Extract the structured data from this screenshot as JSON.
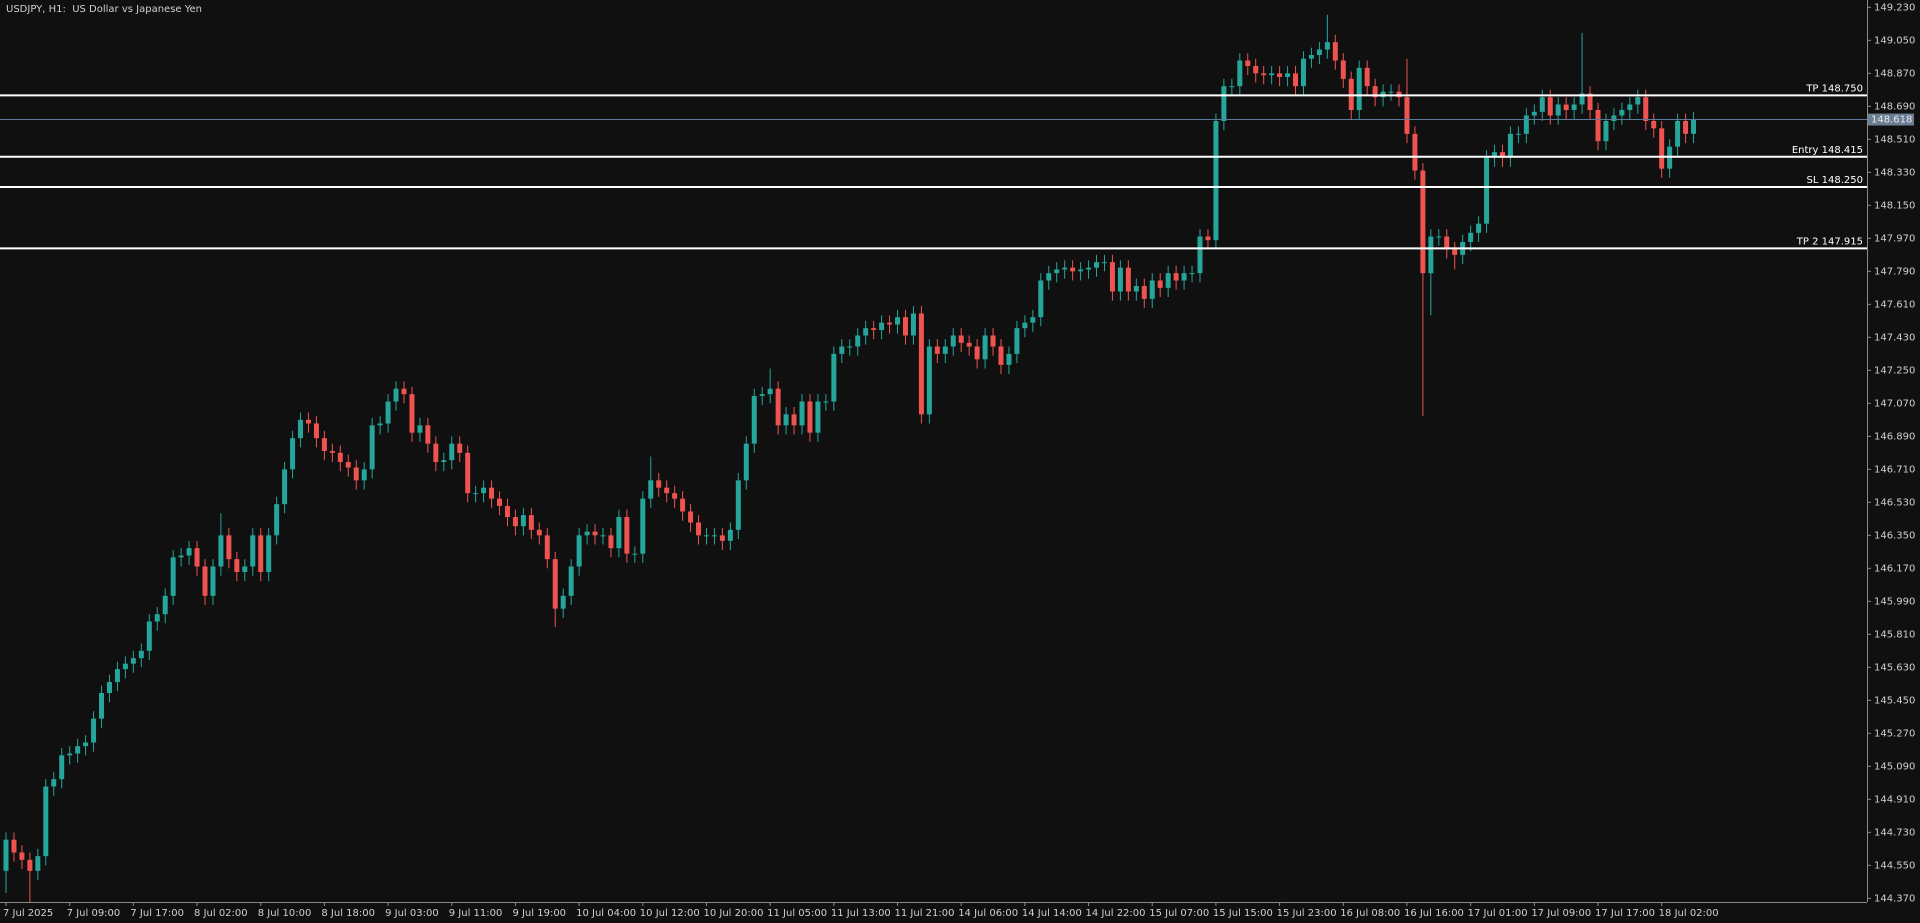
{
  "chart_data": {
    "type": "candlestick",
    "title": "USDJPY, H1:  US Dollar vs Japanese Yen",
    "up_color": "#26a69a",
    "down_color": "#ef5350",
    "ylim": [
      144.35,
      149.27
    ],
    "yticks": [
      {
        "value": 149.23,
        "label": "149.230"
      },
      {
        "value": 149.05,
        "label": "149.050"
      },
      {
        "value": 148.87,
        "label": "148.870"
      },
      {
        "value": 148.69,
        "label": "148.690"
      },
      {
        "value": 148.51,
        "label": "148.510"
      },
      {
        "value": 148.33,
        "label": "148.330"
      },
      {
        "value": 148.15,
        "label": "148.150"
      },
      {
        "value": 147.97,
        "label": "147.970"
      },
      {
        "value": 147.79,
        "label": "147.790"
      },
      {
        "value": 147.61,
        "label": "147.610"
      },
      {
        "value": 147.43,
        "label": "147.430"
      },
      {
        "value": 147.25,
        "label": "147.250"
      },
      {
        "value": 147.07,
        "label": "147.070"
      },
      {
        "value": 146.89,
        "label": "146.890"
      },
      {
        "value": 146.71,
        "label": "146.710"
      },
      {
        "value": 146.53,
        "label": "146.530"
      },
      {
        "value": 146.35,
        "label": "146.350"
      },
      {
        "value": 146.17,
        "label": "146.170"
      },
      {
        "value": 145.99,
        "label": "145.990"
      },
      {
        "value": 145.81,
        "label": "145.810"
      },
      {
        "value": 145.63,
        "label": "145.630"
      },
      {
        "value": 145.45,
        "label": "145.450"
      },
      {
        "value": 145.27,
        "label": "145.270"
      },
      {
        "value": 145.09,
        "label": "145.090"
      },
      {
        "value": 144.91,
        "label": "144.910"
      },
      {
        "value": 144.73,
        "label": "144.730"
      },
      {
        "value": 144.55,
        "label": "144.550"
      },
      {
        "value": 144.37,
        "label": "144.370"
      }
    ],
    "levels": [
      {
        "label": "TP 148.750",
        "value": 148.75
      },
      {
        "label": "Entry 148.415",
        "value": 148.415
      },
      {
        "label": "SL 148.250",
        "value": 148.25
      },
      {
        "label": "TP 2 147.915",
        "value": 147.915
      }
    ],
    "price_line": {
      "value": 148.618,
      "label": "148.618"
    },
    "categories": [
      "7 Jul 2025",
      null,
      null,
      null,
      null,
      null,
      null,
      null,
      "7 Jul 09:00",
      null,
      null,
      null,
      null,
      null,
      null,
      null,
      "7 Jul 17:00",
      null,
      null,
      null,
      null,
      null,
      null,
      null,
      "8 Jul 02:00",
      null,
      null,
      null,
      null,
      null,
      null,
      null,
      "8 Jul 10:00",
      null,
      null,
      null,
      null,
      null,
      null,
      null,
      "8 Jul 18:00",
      null,
      null,
      null,
      null,
      null,
      null,
      null,
      "9 Jul 03:00",
      null,
      null,
      null,
      null,
      null,
      null,
      null,
      "9 Jul 11:00",
      null,
      null,
      null,
      null,
      null,
      null,
      null,
      "9 Jul 19:00",
      null,
      null,
      null,
      null,
      null,
      null,
      null,
      "10 Jul 04:00",
      null,
      null,
      null,
      null,
      null,
      null,
      null,
      "10 Jul 12:00",
      null,
      null,
      null,
      null,
      null,
      null,
      null,
      "10 Jul 20:00",
      null,
      null,
      null,
      null,
      null,
      null,
      null,
      "11 Jul 05:00",
      null,
      null,
      null,
      null,
      null,
      null,
      null,
      "11 Jul 13:00",
      null,
      null,
      null,
      null,
      null,
      null,
      null,
      "11 Jul 21:00",
      null,
      null,
      null,
      null,
      null,
      null,
      null,
      "14 Jul 06:00",
      null,
      null,
      null,
      null,
      null,
      null,
      null,
      "14 Jul 14:00",
      null,
      null,
      null,
      null,
      null,
      null,
      null,
      "14 Jul 22:00",
      null,
      null,
      null,
      null,
      null,
      null,
      null,
      "15 Jul 07:00",
      null,
      null,
      null,
      null,
      null,
      null,
      null,
      "15 Jul 15:00",
      null,
      null,
      null,
      null,
      null,
      null,
      null,
      "15 Jul 23:00",
      null,
      null,
      null,
      null,
      null,
      null,
      null,
      "16 Jul 08:00",
      null,
      null,
      null,
      null,
      null,
      null,
      null,
      "16 Jul 16:00",
      null,
      null,
      null,
      null,
      null,
      null,
      null,
      "17 Jul 01:00",
      null,
      null,
      null,
      null,
      null,
      null,
      null,
      "17 Jul 09:00",
      null,
      null,
      null,
      null,
      null,
      null,
      null,
      "17 Jul 17:00",
      null,
      null,
      null,
      null,
      null,
      null,
      null,
      "18 Jul 02:00",
      null,
      null,
      null,
      null
    ],
    "open": [
      144.52,
      144.69,
      144.62,
      144.58,
      144.52,
      144.6,
      144.98,
      145.02,
      145.15,
      145.16,
      145.2,
      145.22,
      145.35,
      145.49,
      145.55,
      145.62,
      145.65,
      145.68,
      145.72,
      145.88,
      145.92,
      146.02,
      146.23,
      146.24,
      146.28,
      146.18,
      146.02,
      146.18,
      146.35,
      146.22,
      146.15,
      146.18,
      146.35,
      146.15,
      146.35,
      146.52,
      146.71,
      146.88,
      146.98,
      146.96,
      146.88,
      146.81,
      146.8,
      146.75,
      146.72,
      146.65,
      146.71,
      146.95,
      146.96,
      147.08,
      147.15,
      147.12,
      146.91,
      146.95,
      146.85,
      146.75,
      146.76,
      146.85,
      146.8,
      146.58,
      146.58,
      146.61,
      146.55,
      146.51,
      146.45,
      146.4,
      146.46,
      146.38,
      146.35,
      146.22,
      145.95,
      146.02,
      146.18,
      146.35,
      146.37,
      146.35,
      146.35,
      146.28,
      146.45,
      146.25,
      146.25,
      146.55,
      146.65,
      146.61,
      146.58,
      146.55,
      146.48,
      146.42,
      146.35,
      146.35,
      146.35,
      146.32,
      146.38,
      146.65,
      146.85,
      147.11,
      147.12,
      147.15,
      146.95,
      147.01,
      146.95,
      147.08,
      146.91,
      147.08,
      147.08,
      147.34,
      147.38,
      147.38,
      147.44,
      147.48,
      147.47,
      147.51,
      147.5,
      147.54,
      147.44,
      147.56,
      147.01,
      147.38,
      147.34,
      147.38,
      147.44,
      147.4,
      147.38,
      147.31,
      147.44,
      147.38,
      147.28,
      147.34,
      147.48,
      147.51,
      147.54,
      147.74,
      147.78,
      147.8,
      147.81,
      147.79,
      147.8,
      147.81,
      147.84,
      147.84,
      147.68,
      147.81,
      147.68,
      147.71,
      147.64,
      147.74,
      147.7,
      147.78,
      147.74,
      147.78,
      147.78,
      147.98,
      147.96,
      148.61,
      148.8,
      148.8,
      148.94,
      148.91,
      148.87,
      148.86,
      148.87,
      148.85,
      148.87,
      148.8,
      148.95,
      148.97,
      149.0,
      149.04,
      148.94,
      148.84,
      148.67,
      148.9,
      148.8,
      148.74,
      148.77,
      148.77,
      148.74,
      148.54,
      148.34,
      147.78,
      147.98,
      147.98,
      147.91,
      147.88,
      147.95,
      148.0,
      148.05,
      148.41,
      148.44,
      148.41,
      148.54,
      148.54,
      148.64,
      148.66,
      148.74,
      148.64,
      148.7,
      148.67,
      148.7,
      148.76,
      148.67,
      148.5,
      148.61,
      148.64,
      148.67,
      148.7,
      148.74,
      148.61,
      148.57,
      148.35,
      148.47,
      148.61,
      148.54
    ],
    "high": [
      144.73,
      144.73,
      144.66,
      144.62,
      144.64,
      145.02,
      145.06,
      145.19,
      145.2,
      145.24,
      145.26,
      145.39,
      145.53,
      145.59,
      145.66,
      145.69,
      145.72,
      145.76,
      145.92,
      145.96,
      146.06,
      146.27,
      146.28,
      146.32,
      146.32,
      146.22,
      146.22,
      146.47,
      146.39,
      146.26,
      146.22,
      146.39,
      146.39,
      146.39,
      146.56,
      146.75,
      146.92,
      147.02,
      147.02,
      147.0,
      146.92,
      146.85,
      146.84,
      146.79,
      146.76,
      146.75,
      146.99,
      147.0,
      147.12,
      147.19,
      147.19,
      147.16,
      146.99,
      146.99,
      146.89,
      146.8,
      146.89,
      146.89,
      146.84,
      146.62,
      146.65,
      146.65,
      146.59,
      146.55,
      146.49,
      146.5,
      146.5,
      146.42,
      146.39,
      146.26,
      146.06,
      146.22,
      146.39,
      146.41,
      146.41,
      146.39,
      146.39,
      146.49,
      146.49,
      146.29,
      146.59,
      146.78,
      146.69,
      146.65,
      146.62,
      146.59,
      146.52,
      146.46,
      146.39,
      146.39,
      146.39,
      146.42,
      146.69,
      146.89,
      147.15,
      147.16,
      147.26,
      147.19,
      147.05,
      147.05,
      147.12,
      147.12,
      147.12,
      147.12,
      147.38,
      147.42,
      147.42,
      147.48,
      147.52,
      147.52,
      147.55,
      147.55,
      147.58,
      147.58,
      147.6,
      147.6,
      147.42,
      147.42,
      147.42,
      147.48,
      147.48,
      147.44,
      147.42,
      147.48,
      147.48,
      147.42,
      147.38,
      147.52,
      147.55,
      147.58,
      147.78,
      147.82,
      147.84,
      147.85,
      147.85,
      147.84,
      147.85,
      147.88,
      147.88,
      147.88,
      147.85,
      147.85,
      147.75,
      147.75,
      147.78,
      147.78,
      147.82,
      147.82,
      147.82,
      147.82,
      148.02,
      148.02,
      148.65,
      148.84,
      148.84,
      148.98,
      148.98,
      148.95,
      148.91,
      148.91,
      148.91,
      148.91,
      148.91,
      148.99,
      149.01,
      149.04,
      149.19,
      149.08,
      148.98,
      148.88,
      148.94,
      148.94,
      148.84,
      148.81,
      148.81,
      148.81,
      148.95,
      148.58,
      148.38,
      148.02,
      148.02,
      148.02,
      147.95,
      147.99,
      148.04,
      148.09,
      148.45,
      148.48,
      148.48,
      148.58,
      148.58,
      148.68,
      148.7,
      148.78,
      148.78,
      148.74,
      148.74,
      148.74,
      149.09,
      148.8,
      148.71,
      148.65,
      148.68,
      148.71,
      148.74,
      148.78,
      148.78,
      148.65,
      148.61,
      148.51,
      148.65,
      148.65,
      148.66
    ],
    "low": [
      144.4,
      144.57,
      144.53,
      144.35,
      144.47,
      144.55,
      144.93,
      144.97,
      145.1,
      145.11,
      145.15,
      145.17,
      145.3,
      145.44,
      145.5,
      145.57,
      145.6,
      145.63,
      145.67,
      145.83,
      145.87,
      145.97,
      146.18,
      146.19,
      146.13,
      145.97,
      145.97,
      146.13,
      146.17,
      146.1,
      146.1,
      146.13,
      146.1,
      146.1,
      146.3,
      146.47,
      146.66,
      146.83,
      146.91,
      146.83,
      146.76,
      146.75,
      146.7,
      146.67,
      146.6,
      146.6,
      146.66,
      146.9,
      146.91,
      147.03,
      147.07,
      146.86,
      146.86,
      146.8,
      146.7,
      146.7,
      146.71,
      146.75,
      146.53,
      146.53,
      146.53,
      146.5,
      146.46,
      146.4,
      146.35,
      146.35,
      146.33,
      146.3,
      146.17,
      145.85,
      145.9,
      145.97,
      146.13,
      146.3,
      146.3,
      146.3,
      146.23,
      146.23,
      146.2,
      146.2,
      146.2,
      146.5,
      146.56,
      146.53,
      146.5,
      146.43,
      146.37,
      146.3,
      146.3,
      146.3,
      146.27,
      146.27,
      146.33,
      146.6,
      146.8,
      147.06,
      147.07,
      146.9,
      146.9,
      146.9,
      146.9,
      146.86,
      146.86,
      147.03,
      147.03,
      147.29,
      147.33,
      147.33,
      147.39,
      147.42,
      147.42,
      147.45,
      147.45,
      147.39,
      147.39,
      146.96,
      146.96,
      147.29,
      147.29,
      147.33,
      147.35,
      147.33,
      147.26,
      147.26,
      147.33,
      147.23,
      147.23,
      147.29,
      147.43,
      147.46,
      147.49,
      147.69,
      147.73,
      147.75,
      147.74,
      147.74,
      147.75,
      147.76,
      147.79,
      147.63,
      147.63,
      147.63,
      147.63,
      147.59,
      147.59,
      147.65,
      147.65,
      147.69,
      147.69,
      147.73,
      147.73,
      147.91,
      147.91,
      148.56,
      148.75,
      148.75,
      148.86,
      148.82,
      148.81,
      148.81,
      148.8,
      148.8,
      148.75,
      148.75,
      148.9,
      148.92,
      148.95,
      148.89,
      148.79,
      148.62,
      148.62,
      148.75,
      148.69,
      148.69,
      148.72,
      148.69,
      148.49,
      148.29,
      147.0,
      147.55,
      147.93,
      147.86,
      147.8,
      147.83,
      147.9,
      147.95,
      148.0,
      148.36,
      148.36,
      148.36,
      148.49,
      148.49,
      148.59,
      148.61,
      148.59,
      148.59,
      148.62,
      148.62,
      148.65,
      148.62,
      148.45,
      148.45,
      148.56,
      148.59,
      148.62,
      148.65,
      148.56,
      148.52,
      148.3,
      148.3,
      148.42,
      148.49,
      148.49
    ],
    "close": [
      144.69,
      144.62,
      144.58,
      144.52,
      144.6,
      144.98,
      145.02,
      145.15,
      145.16,
      145.2,
      145.22,
      145.35,
      145.49,
      145.55,
      145.62,
      145.65,
      145.68,
      145.72,
      145.88,
      145.92,
      146.02,
      146.23,
      146.24,
      146.28,
      146.18,
      146.02,
      146.18,
      146.35,
      146.22,
      146.15,
      146.18,
      146.35,
      146.15,
      146.35,
      146.52,
      146.71,
      146.88,
      146.98,
      146.96,
      146.88,
      146.81,
      146.8,
      146.75,
      146.72,
      146.65,
      146.71,
      146.95,
      146.96,
      147.08,
      147.15,
      147.12,
      146.91,
      146.95,
      146.85,
      146.75,
      146.76,
      146.85,
      146.8,
      146.58,
      146.58,
      146.61,
      146.55,
      146.51,
      146.45,
      146.4,
      146.46,
      146.38,
      146.35,
      146.22,
      145.95,
      146.02,
      146.18,
      146.35,
      146.37,
      146.35,
      146.35,
      146.28,
      146.45,
      146.25,
      146.25,
      146.55,
      146.65,
      146.61,
      146.58,
      146.55,
      146.48,
      146.42,
      146.35,
      146.35,
      146.35,
      146.32,
      146.38,
      146.65,
      146.85,
      147.11,
      147.12,
      147.15,
      146.95,
      147.01,
      146.95,
      147.08,
      146.91,
      147.08,
      147.08,
      147.34,
      147.38,
      147.38,
      147.44,
      147.48,
      147.47,
      147.51,
      147.5,
      147.54,
      147.44,
      147.56,
      147.01,
      147.38,
      147.34,
      147.38,
      147.44,
      147.4,
      147.38,
      147.31,
      147.44,
      147.38,
      147.28,
      147.34,
      147.48,
      147.51,
      147.54,
      147.74,
      147.78,
      147.8,
      147.81,
      147.79,
      147.8,
      147.81,
      147.84,
      147.84,
      147.68,
      147.81,
      147.68,
      147.71,
      147.64,
      147.74,
      147.7,
      147.78,
      147.74,
      147.78,
      147.78,
      147.98,
      147.96,
      148.61,
      148.8,
      148.8,
      148.94,
      148.91,
      148.87,
      148.86,
      148.87,
      148.85,
      148.87,
      148.8,
      148.95,
      148.97,
      149.0,
      149.04,
      148.94,
      148.84,
      148.67,
      148.9,
      148.8,
      148.74,
      148.77,
      148.77,
      148.74,
      148.54,
      148.34,
      147.78,
      147.98,
      147.98,
      147.91,
      147.88,
      147.95,
      148.0,
      148.05,
      148.41,
      148.44,
      148.41,
      148.54,
      148.54,
      148.64,
      148.66,
      148.74,
      148.64,
      148.7,
      148.67,
      148.7,
      148.76,
      148.67,
      148.5,
      148.61,
      148.64,
      148.67,
      148.7,
      148.74,
      148.61,
      148.57,
      148.35,
      148.47,
      148.61,
      148.54,
      148.62
    ]
  }
}
